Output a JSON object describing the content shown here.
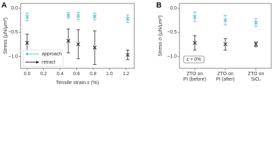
{
  "chart_data": [
    {
      "type": "scatter",
      "label": "A",
      "ylabel": "Stress (μN/μm²)",
      "xlabel": "Tensile strain ε (%)",
      "x": [
        0,
        0.5,
        0.62,
        0.82,
        1.22
      ],
      "series": [
        {
          "name": "approach",
          "color": "#5bb8c9",
          "values": [
            -0.18,
            -0.15,
            -0.16,
            -0.17,
            -0.22
          ],
          "errors": [
            0.08,
            0.06,
            0.07,
            0.07,
            0.08
          ]
        },
        {
          "name": "retract",
          "color": "#222222",
          "values": [
            -0.72,
            -0.68,
            -0.75,
            -0.82,
            -0.97
          ],
          "errors": [
            0.18,
            0.25,
            0.3,
            0.35,
            0.1
          ]
        }
      ],
      "xlim": [
        -0.08,
        1.3
      ],
      "ylim": [
        -1.25,
        0.1
      ],
      "xticks": [
        {
          "value": 0,
          "label": "0.0"
        },
        {
          "value": 0.2,
          "label": "0.2"
        },
        {
          "value": 0.4,
          "label": "0.4"
        },
        {
          "value": 0.6,
          "label": "0.6"
        },
        {
          "value": 0.8,
          "label": "0.8"
        },
        {
          "value": 1.0,
          "label": "1.0"
        },
        {
          "value": 1.2,
          "label": "1.2"
        }
      ],
      "yticks": [
        {
          "value": 0,
          "label": "0.0"
        },
        {
          "value": -0.5,
          "label": "−0.5"
        },
        {
          "value": -1,
          "label": "−1.0"
        }
      ],
      "legend": "lower left",
      "grid": false
    },
    {
      "type": "scatter",
      "label": "B",
      "ylabel": "Stress σ (μN/μm²)",
      "categories": [
        "ZTO on\nPI (before)",
        "ZTO on\nPI (after)",
        "ZTO on\nSiO₂"
      ],
      "series": [
        {
          "name": "approach",
          "color": "#5bb8c9",
          "values": [
            -0.18,
            -0.25,
            -0.3
          ],
          "errors": [
            0.1,
            0.1,
            0.08
          ]
        },
        {
          "name": "retract",
          "color": "#222222",
          "values": [
            -0.72,
            -0.75,
            -0.75
          ],
          "errors": [
            0.15,
            0.12,
            0.05
          ]
        }
      ],
      "ylim": [
        -1.25,
        0.1
      ],
      "yticks": [
        {
          "value": 0,
          "label": "0.0"
        },
        {
          "value": -0.5,
          "label": "−0.5"
        },
        {
          "value": -1,
          "label": "−1.0"
        }
      ],
      "annotation": "ε = 0%",
      "grid": false
    }
  ]
}
